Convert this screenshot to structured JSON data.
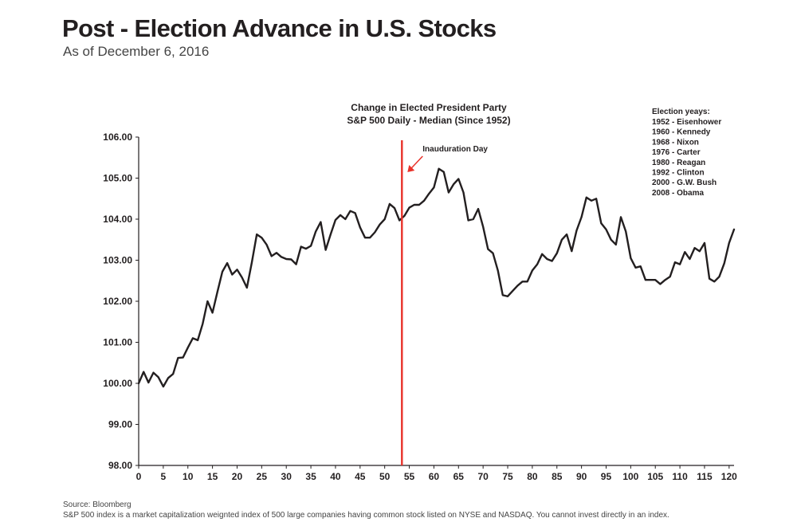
{
  "header": {
    "title": "Post - Election Advance in U.S. Stocks",
    "subtitle": "As of December 6, 2016"
  },
  "footer": {
    "source": "Source: Bloomberg",
    "note": "S&P 500 index is a market capitalization weignted index of 500 large companies having common stock listed on NYSE and NASDAQ. You cannot invest directly in an index."
  },
  "chart_data": {
    "type": "line",
    "title_lines": [
      "Change in Elected President Party",
      "S&P 500 Daily - Median (Since 1952)"
    ],
    "xlabel": "",
    "ylabel": "",
    "xlim": [
      0,
      121
    ],
    "ylim": [
      98,
      106
    ],
    "x_ticks": [
      0,
      5,
      10,
      15,
      20,
      25,
      30,
      35,
      40,
      45,
      50,
      55,
      60,
      65,
      70,
      75,
      80,
      85,
      90,
      95,
      100,
      105,
      110,
      115,
      120
    ],
    "y_ticks": [
      "98.00",
      "99.00",
      "100.00",
      "101.00",
      "102.00",
      "103.00",
      "104.00",
      "105.00",
      "106.00"
    ],
    "grid": false,
    "line_color": "#231f20",
    "marker_color": "#e8322a",
    "inauguration": {
      "x": 53.5,
      "label": "Inauduration Day"
    },
    "legend": {
      "title": "Election yeays:",
      "items": [
        "1952 - Eisenhower",
        "1960 - Kennedy",
        "1968 - Nixon",
        "1976 - Carter",
        "1980 - Reagan",
        "1992 - Clinton",
        "2000 - G.W. Bush",
        "2008 - Obama"
      ]
    },
    "series": [
      {
        "x": [
          0,
          1,
          2,
          3,
          4,
          5,
          6,
          7,
          8,
          9,
          10,
          11,
          12,
          13,
          14,
          15,
          16,
          17,
          18,
          19,
          20,
          21,
          22,
          23,
          24,
          25,
          26,
          27,
          28,
          29,
          30,
          31,
          32,
          33,
          34,
          35,
          36,
          37,
          38,
          39,
          40,
          41,
          42,
          43,
          44,
          45,
          46,
          47,
          48,
          49,
          50,
          51,
          52,
          53,
          54,
          55,
          56,
          57,
          58,
          59,
          60,
          61,
          62,
          63,
          64,
          65,
          66,
          67,
          68,
          69,
          70,
          71,
          72,
          73,
          74,
          75,
          76,
          77,
          78,
          79,
          80,
          81,
          82,
          83,
          84,
          85,
          86,
          87,
          88,
          89,
          90,
          91,
          92,
          93,
          94,
          95,
          96,
          97,
          98,
          99,
          100,
          101,
          102,
          103,
          104,
          105,
          106,
          107,
          108,
          109,
          110,
          111,
          112,
          113,
          114,
          115,
          116,
          117,
          118,
          119,
          120,
          121
        ],
        "values": [
          100.0,
          100.28,
          100.02,
          100.26,
          100.15,
          99.92,
          100.13,
          100.23,
          100.62,
          100.63,
          100.87,
          101.1,
          101.05,
          101.45,
          102.0,
          101.72,
          102.23,
          102.72,
          102.93,
          102.65,
          102.77,
          102.58,
          102.33,
          102.95,
          103.63,
          103.55,
          103.38,
          103.1,
          103.18,
          103.08,
          103.03,
          103.02,
          102.9,
          103.33,
          103.28,
          103.35,
          103.7,
          103.93,
          103.25,
          103.63,
          103.98,
          104.1,
          104.0,
          104.2,
          104.15,
          103.8,
          103.55,
          103.55,
          103.68,
          103.87,
          104.0,
          104.37,
          104.27,
          103.97,
          104.08,
          104.28,
          104.35,
          104.35,
          104.45,
          104.62,
          104.77,
          105.23,
          105.15,
          104.65,
          104.85,
          104.98,
          104.65,
          103.97,
          104.0,
          104.25,
          103.82,
          103.27,
          103.17,
          102.75,
          102.15,
          102.12,
          102.25,
          102.38,
          102.48,
          102.48,
          102.75,
          102.9,
          103.15,
          103.03,
          102.98,
          103.17,
          103.5,
          103.63,
          103.22,
          103.72,
          104.05,
          104.53,
          104.45,
          104.5,
          103.9,
          103.75,
          103.5,
          103.38,
          104.05,
          103.7,
          103.05,
          102.82,
          102.85,
          102.52,
          102.52,
          102.52,
          102.42,
          102.52,
          102.6,
          102.95,
          102.9,
          103.2,
          103.03,
          103.3,
          103.22,
          103.42,
          102.55,
          102.48,
          102.6,
          102.92,
          103.42,
          103.75
        ]
      }
    ]
  }
}
